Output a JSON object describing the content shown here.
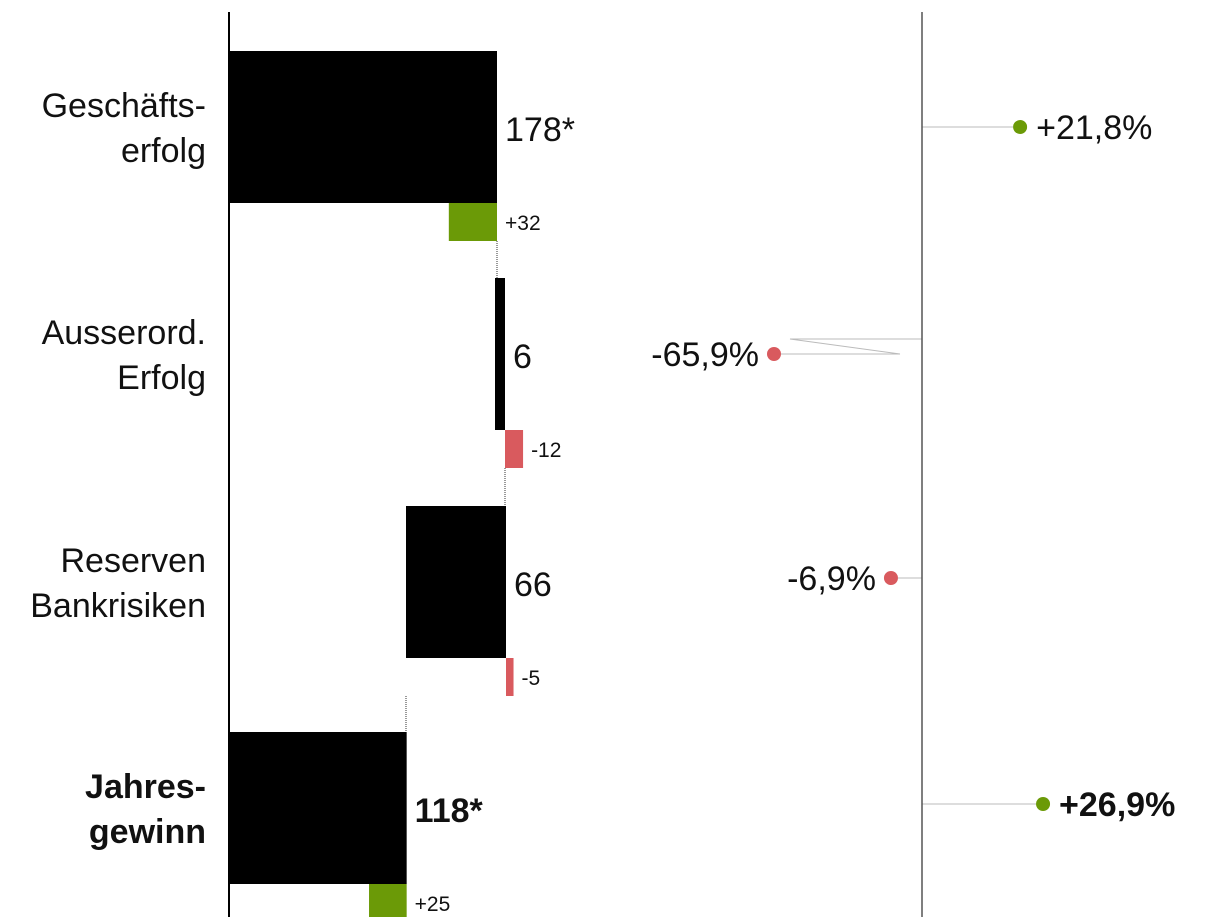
{
  "chart_data": {
    "type": "bar",
    "orientation": "horizontal",
    "categories": [
      {
        "lines": [
          "Geschäfts-",
          "erfolg"
        ],
        "bold": false
      },
      {
        "lines": [
          "Ausserord.",
          "Erfolg"
        ],
        "bold": false
      },
      {
        "lines": [
          "Reserven",
          "Bankrisiken"
        ],
        "bold": false
      },
      {
        "lines": [
          "Jahres-",
          "gewinn"
        ],
        "bold": true
      }
    ],
    "values": [
      178,
      6,
      66,
      118
    ],
    "value_labels": [
      "178*",
      "6",
      "66",
      "118*"
    ],
    "deltas": [
      32,
      -12,
      -5,
      25
    ],
    "delta_labels": [
      "+32",
      "-12",
      "-5",
      "+25"
    ],
    "pct_changes": [
      21.8,
      -65.9,
      -6.9,
      26.9
    ],
    "pct_labels": [
      "+21,8%",
      "-65,9%",
      "-6,9%",
      "+26,9%"
    ],
    "xlim": [
      0,
      180
    ],
    "pct_xlim": [
      -70,
      30
    ],
    "colors": {
      "bar": "#000000",
      "positive": "#6b9a07",
      "negative": "#d95a5e",
      "axis": "#555555",
      "connector": "#bbbbbb"
    }
  }
}
